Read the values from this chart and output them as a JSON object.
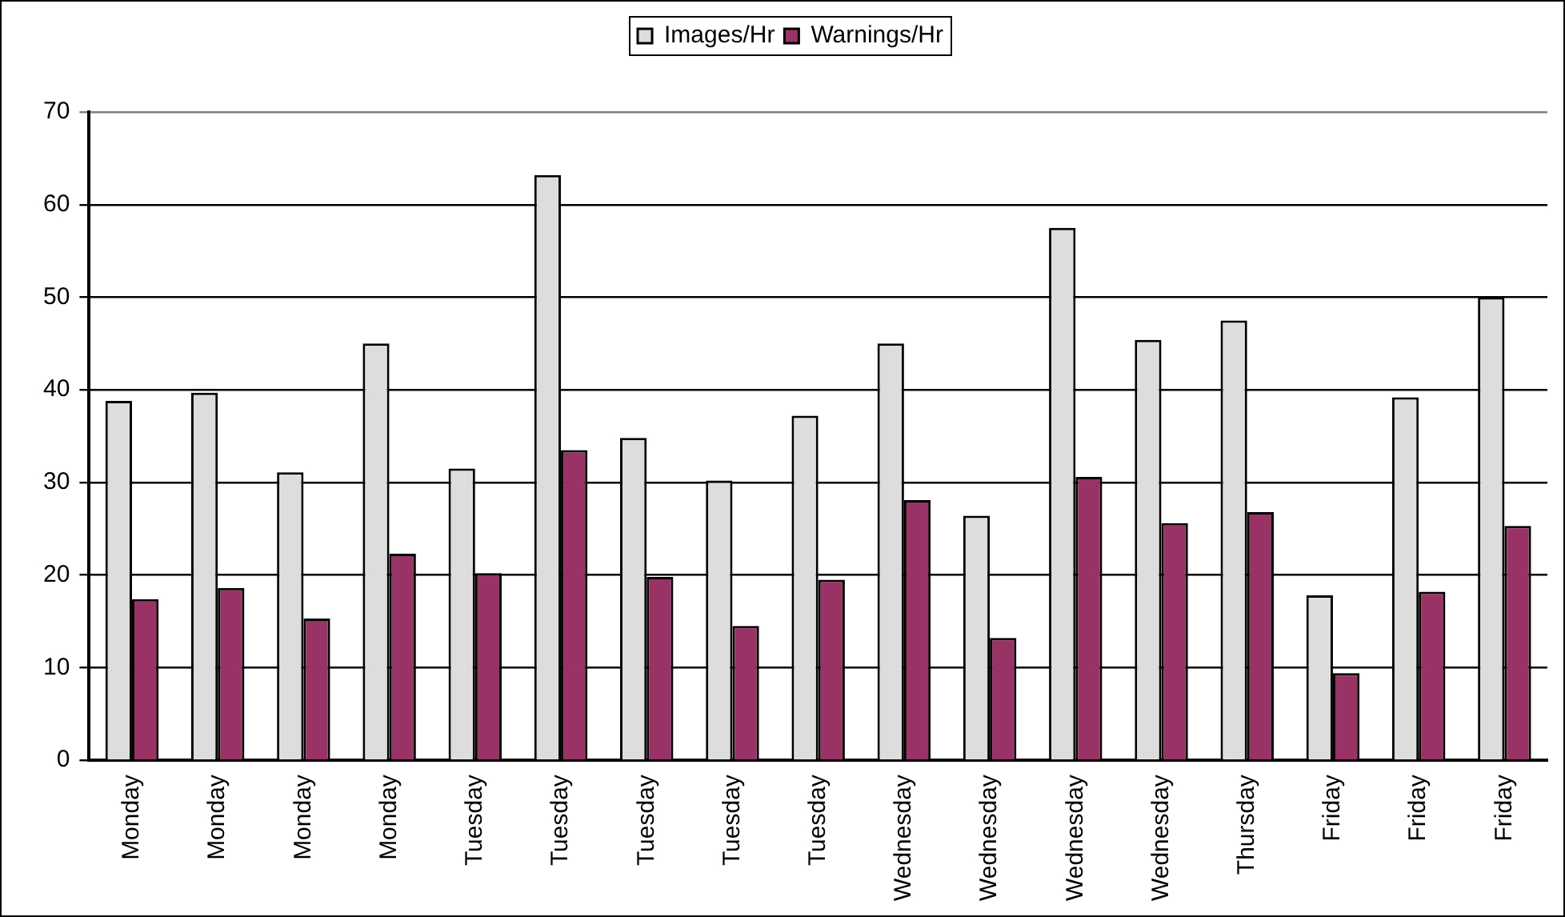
{
  "chart_data": {
    "type": "bar",
    "categories": [
      "Monday",
      "Monday",
      "Monday",
      "Monday",
      "Tuesday",
      "Tuesday",
      "Tuesday",
      "Tuesday",
      "Tuesday",
      "Wednesday",
      "Wednesday",
      "Wednesday",
      "Wednesday",
      "Thursday",
      "Friday",
      "Friday",
      "Friday"
    ],
    "series": [
      {
        "name": "Images/Hr",
        "color": "#dddddd",
        "values": [
          38.8,
          39.7,
          31.1,
          45.0,
          31.5,
          63.2,
          34.8,
          30.2,
          37.2,
          45.0,
          26.4,
          57.5,
          45.4,
          47.5,
          17.8,
          39.2,
          50.0
        ]
      },
      {
        "name": "Warnings/Hr",
        "color": "#993366",
        "values": [
          17.4,
          18.6,
          15.3,
          22.3,
          20.2,
          33.5,
          19.8,
          14.5,
          19.5,
          28.1,
          13.2,
          30.6,
          25.6,
          26.8,
          9.4,
          18.2,
          25.3
        ]
      }
    ],
    "ylim": [
      0,
      70
    ],
    "yticks": [
      0,
      10,
      20,
      30,
      40,
      50,
      60,
      70
    ],
    "grid": "y",
    "legend": "top"
  }
}
